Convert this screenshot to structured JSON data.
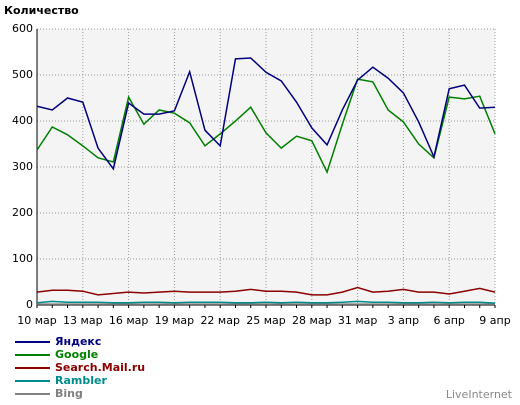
{
  "chart_data": {
    "type": "line",
    "title": "Количество",
    "categories": [
      "10 мар",
      null,
      null,
      "13 мар",
      null,
      null,
      "16 мар",
      null,
      null,
      "19 мар",
      null,
      null,
      "22 мар",
      null,
      null,
      "25 мар",
      null,
      null,
      "28 мар",
      null,
      null,
      "31 мар",
      null,
      null,
      "3 апр",
      null,
      null,
      "6 апр",
      null,
      null,
      "9 апр"
    ],
    "ylim": [
      0,
      600
    ],
    "yticks": [
      0,
      100,
      200,
      300,
      400,
      500,
      600
    ],
    "grid": true,
    "series": [
      {
        "name": "Яндекс",
        "color": "#000080",
        "values": [
          432,
          424,
          450,
          441,
          341,
          296,
          439,
          415,
          415,
          422,
          507,
          380,
          346,
          535,
          537,
          506,
          487,
          441,
          385,
          348,
          424,
          489,
          517,
          493,
          461,
          398,
          322,
          470,
          478,
          428,
          430
        ]
      },
      {
        "name": "Google",
        "color": "#008000",
        "values": [
          337,
          387,
          370,
          346,
          320,
          311,
          452,
          393,
          424,
          417,
          396,
          346,
          372,
          400,
          430,
          374,
          341,
          367,
          357,
          289,
          393,
          491,
          485,
          424,
          398,
          350,
          320,
          452,
          448,
          454,
          372
        ]
      },
      {
        "name": "Search.Mail.ru",
        "color": "#8b0000",
        "values": [
          28,
          32,
          32,
          30,
          22,
          25,
          28,
          26,
          28,
          30,
          28,
          28,
          28,
          30,
          34,
          30,
          30,
          28,
          22,
          22,
          28,
          38,
          28,
          30,
          34,
          28,
          28,
          24,
          30,
          36,
          28
        ]
      },
      {
        "name": "Rambler",
        "color": "#008b8b",
        "values": [
          5,
          8,
          6,
          6,
          6,
          5,
          5,
          6,
          6,
          5,
          6,
          6,
          6,
          5,
          5,
          6,
          5,
          6,
          5,
          5,
          6,
          8,
          6,
          6,
          5,
          5,
          6,
          5,
          6,
          6,
          4
        ]
      },
      {
        "name": "Bing",
        "color": "#808080",
        "values": [
          2,
          2,
          2,
          2,
          2,
          2,
          2,
          2,
          2,
          2,
          2,
          2,
          2,
          2,
          2,
          2,
          2,
          2,
          2,
          2,
          2,
          2,
          2,
          2,
          2,
          2,
          2,
          2,
          2,
          2,
          2
        ]
      }
    ],
    "watermark": "LiveInternet"
  }
}
